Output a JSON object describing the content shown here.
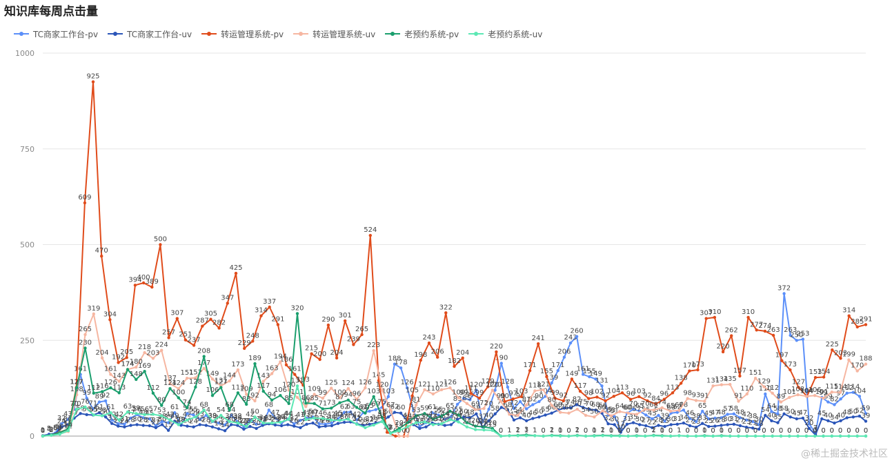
{
  "chart_data": {
    "type": "line",
    "title": "知识库每周点击量",
    "ylim": [
      0,
      1000
    ],
    "yticks": [
      0,
      250,
      500,
      750,
      1000
    ],
    "grid": true,
    "legend_placement": "top-left",
    "series": [
      {
        "name": "TC商家工作台-pv",
        "color": "#5b8ff9",
        "values": [
          1,
          5,
          8,
          32,
          43,
          70,
          161,
          99,
          71,
          89,
          92,
          42,
          32,
          31,
          47,
          56,
          48,
          45,
          27,
          38,
          35,
          61,
          28,
          59,
          55,
          43,
          54,
          38,
          34,
          29,
          54,
          38,
          25,
          42,
          31,
          31,
          68,
          47,
          34,
          44,
          32,
          41,
          47,
          50,
          32,
          31,
          34,
          45,
          62,
          63,
          42,
          61,
          65,
          69,
          75,
          103,
          188,
          178,
          126,
          67,
          25,
          35,
          61,
          55,
          44,
          51,
          83,
          99,
          95,
          120,
          37,
          70,
          120,
          190,
          128,
          72,
          90,
          71,
          82,
          90,
          104,
          139,
          171,
          206,
          243,
          260,
          161,
          155,
          149,
          131,
          55,
          51,
          17,
          60,
          70,
          65,
          55,
          45,
          54,
          39,
          60,
          62,
          68,
          46,
          38,
          65,
          45,
          47,
          48,
          57,
          58,
          48,
          42,
          38,
          30,
          110,
          64,
          58,
          372,
          263,
          250,
          253,
          32,
          7,
          101,
          89,
          82,
          97,
          112,
          114,
          104,
          59
        ]
      },
      {
        "name": "TC商家工作台-uv",
        "color": "#2b55b8",
        "values": [
          1,
          4,
          6,
          24,
          30,
          47,
          59,
          56,
          55,
          61,
          50,
          33,
          26,
          24,
          28,
          30,
          28,
          27,
          22,
          30,
          15,
          39,
          29,
          26,
          24,
          30,
          28,
          24,
          19,
          14,
          30,
          28,
          18,
          25,
          20,
          28,
          32,
          29,
          27,
          30,
          26,
          22,
          31,
          34,
          24,
          26,
          27,
          33,
          36,
          37,
          32,
          28,
          31,
          34,
          38,
          50,
          62,
          60,
          40,
          30,
          20,
          24,
          34,
          31,
          28,
          30,
          44,
          50,
          48,
          58,
          24,
          40,
          58,
          75,
          68,
          42,
          48,
          40,
          46,
          50,
          55,
          60,
          68,
          73,
          74,
          82,
          75,
          70,
          68,
          60,
          32,
          30,
          10,
          31,
          35,
          30,
          27,
          22,
          28,
          25,
          30,
          31,
          34,
          27,
          23,
          33,
          25,
          26,
          28,
          30,
          31,
          27,
          23,
          21,
          18,
          54,
          40,
          35,
          58,
          50,
          45,
          47,
          20,
          3,
          45,
          40,
          34,
          40,
          48,
          50,
          52,
          39
        ]
      },
      {
        "name": "转运管理系统-pv",
        "color": "#e04b1a",
        "values": [
          0,
          3,
          10,
          18,
          127,
          609,
          925,
          470,
          304,
          192,
          205,
          394,
          400,
          389,
          500,
          257,
          307,
          251,
          237,
          287,
          305,
          282,
          347,
          425,
          229,
          248,
          314,
          337,
          291,
          186,
          161,
          133,
          215,
          200,
          290,
          204,
          301,
          239,
          265,
          524,
          145,
          10,
          0,
          0,
          105,
          198,
          243,
          206,
          322,
          182,
          204,
          111,
          99,
          129,
          220,
          90,
          97,
          103,
          171,
          241,
          155,
          99,
          92,
          149,
          117,
          98,
          102,
          92,
          104,
          113,
          96,
          103,
          92,
          84,
          96,
          113,
          138,
          170,
          173,
          307,
          310,
          220,
          262,
          157,
          310,
          277,
          274,
          263,
          197,
          173,
          127,
          104,
          153,
          154,
          225,
          203,
          314,
          285,
          291
        ]
      },
      {
        "name": "转运管理系统-uv",
        "color": "#f6b6a1",
        "values": [
          0,
          2,
          6,
          12,
          108,
          265,
          319,
          204,
          161,
          143,
          174,
          180,
          218,
          203,
          224,
          137,
          124,
          151,
          152,
          177,
          149,
          131,
          144,
          173,
          109,
          92,
          143,
          163,
          194,
          120,
          101,
          77,
          109,
          99,
          125,
          100,
          124,
          96,
          126,
          223,
          120,
          67,
          0,
          0,
          81,
          121,
          110,
          121,
          126,
          100,
          85,
          69,
          72,
          120,
          90,
          57,
          54,
          81,
          118,
          121,
          80,
          62,
          60,
          70,
          54,
          50,
          66,
          53,
          64,
          60,
          57,
          70,
          68,
          74,
          65,
          67,
          98,
          93,
          91,
          131,
          134,
          135,
          91,
          110,
          151,
          129,
          112,
          89,
          101,
          108,
          104,
          106,
          99,
          115,
          114,
          199,
          170,
          188
        ]
      },
      {
        "name": "老预约系统-pv",
        "color": "#1a9e6d",
        "values": [
          0,
          3,
          9,
          19,
          127,
          230,
          112,
          116,
          126,
          113,
          174,
          148,
          169,
          112,
          80,
          124,
          100,
          74,
          128,
          208,
          106,
          127,
          68,
          113,
          83,
          189,
          117,
          94,
          106,
          85,
          320,
          86,
          85,
          71,
          73,
          87,
          94,
          75,
          60,
          103,
          48,
          8,
          20,
          35,
          53,
          59,
          44,
          52,
          65,
          55,
          35,
          26,
          24,
          20,
          0,
          1,
          2,
          3,
          1,
          0,
          2,
          1,
          0,
          2,
          0,
          1,
          2,
          1,
          1,
          0,
          1,
          0,
          2,
          1,
          0,
          1,
          0,
          0,
          1,
          0,
          1,
          0,
          0,
          0,
          0,
          0,
          0,
          0,
          0,
          0,
          0,
          0,
          0,
          0,
          0,
          0,
          0,
          0
        ]
      },
      {
        "name": "老预约系统-uv",
        "color": "#5ce8b4",
        "values": [
          0,
          2,
          5,
          14,
          70,
          76,
          55,
          53,
          61,
          42,
          63,
          59,
          56,
          57,
          53,
          42,
          30,
          42,
          50,
          68,
          39,
          54,
          38,
          34,
          25,
          50,
          34,
          34,
          36,
          44,
          131,
          43,
          47,
          46,
          42,
          41,
          44,
          31,
          22,
          29,
          38,
          7,
          14,
          25,
          35,
          37,
          30,
          32,
          43,
          37,
          24,
          17,
          16,
          15,
          0,
          1,
          1,
          1,
          1,
          0,
          1,
          0,
          0,
          1,
          0,
          0,
          1,
          0,
          0,
          0,
          0,
          0,
          1,
          0,
          0,
          1,
          0,
          0,
          0,
          0,
          0,
          0,
          0,
          0,
          0,
          0,
          0,
          0,
          0,
          0,
          0,
          0,
          0,
          0,
          0,
          0,
          0,
          0
        ]
      }
    ]
  },
  "watermark": "@稀土掘金技术社区"
}
